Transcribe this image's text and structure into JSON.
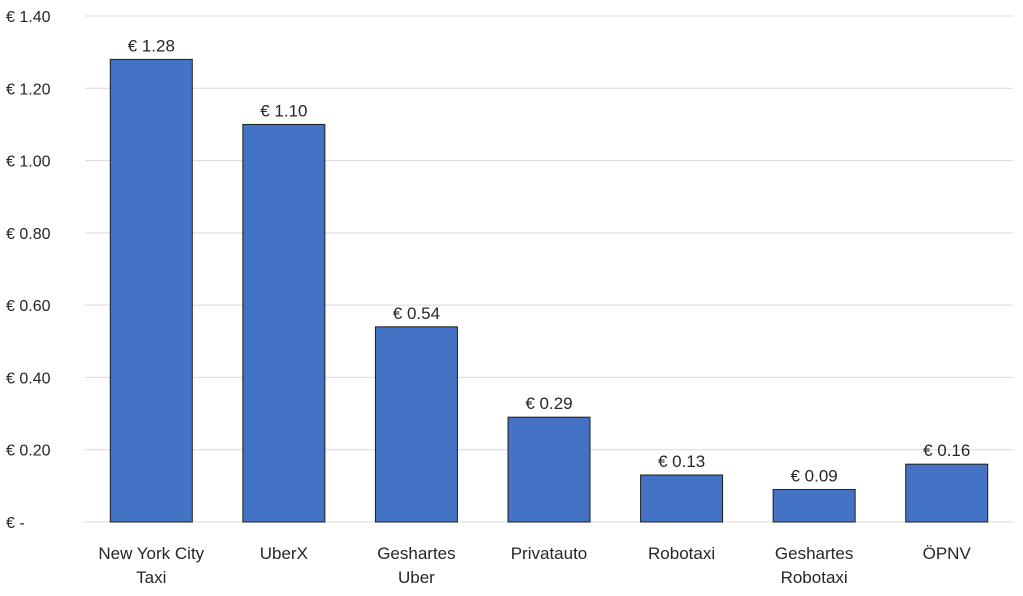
{
  "chart_data": {
    "type": "bar",
    "title": "",
    "xlabel": "",
    "ylabel": "",
    "categories": [
      [
        "New York City",
        "Taxi"
      ],
      [
        "UberX"
      ],
      [
        "Geshartes",
        "Uber"
      ],
      [
        "Privatauto"
      ],
      [
        "Robotaxi"
      ],
      [
        "Geshartes",
        "Robotaxi"
      ],
      [
        "ÖPNV"
      ]
    ],
    "values": [
      1.28,
      1.1,
      0.54,
      0.29,
      0.13,
      0.09,
      0.16
    ],
    "data_labels": [
      "€ 1.28",
      "€ 1.10",
      "€ 0.54",
      "€ 0.29",
      "€ 0.13",
      "€ 0.09",
      "€ 0.16"
    ],
    "ylim": [
      0,
      1.4
    ],
    "yticks": [
      0,
      0.2,
      0.4,
      0.6,
      0.8,
      1.0,
      1.2,
      1.4
    ],
    "ytick_labels": [
      "€ -",
      "€ 0.20",
      "€ 0.40",
      "€ 0.60",
      "€ 0.80",
      "€ 1.00",
      "€ 1.20",
      "€ 1.40"
    ],
    "grid": true,
    "legend": "none",
    "colors": {
      "bar": "#4472c4",
      "bar_edge": "#1f1f1f",
      "grid": "#d9d9d9",
      "text": "#262626"
    }
  }
}
